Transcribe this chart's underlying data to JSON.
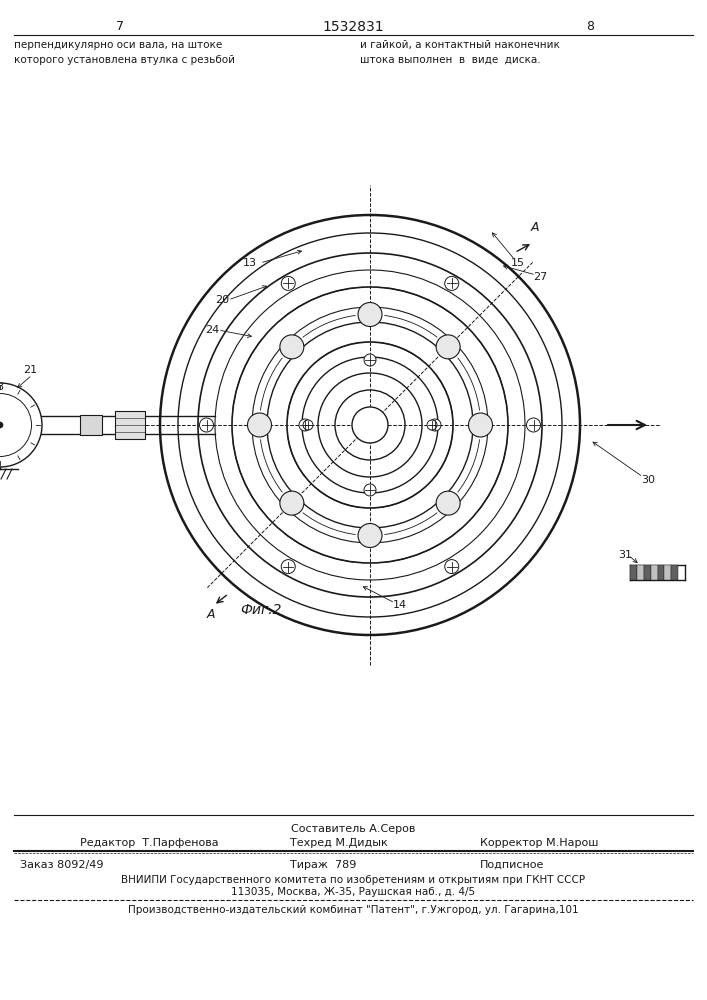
{
  "title": "1532831",
  "page_left": "7",
  "page_right": "8",
  "text_top_left": "перпендикулярно оси вала, на штоке\nкоторого установлена втулка с резьбой",
  "text_top_right": "и гайкой, а контактный наконечник\nштока выполнен  в  виде  диска.",
  "fig_label": "Фиг.2",
  "footer_composer": "Составитель А.Серов",
  "footer_editor": "Редактор  Т.Парфенова",
  "footer_techred": "Техред М.Дидык",
  "footer_corrector": "Корректор М.Нарош",
  "footer_order": "Заказ 8092/49",
  "footer_tirazh": "Тираж  789",
  "footer_podp": "Подписное",
  "footer_vnipi": "ВНИИПИ Государственного комитета по изобретениям и открытиям при ГКНТ СССР",
  "footer_address": "113035, Москва, Ж-35, Раушская наб., д. 4/5",
  "footer_prod": "Производственно-издательский комбинат \"Патент\", г.Ужгород, ул. Гагарина,101",
  "bg_color": "#ffffff",
  "line_color": "#1a1a1a"
}
